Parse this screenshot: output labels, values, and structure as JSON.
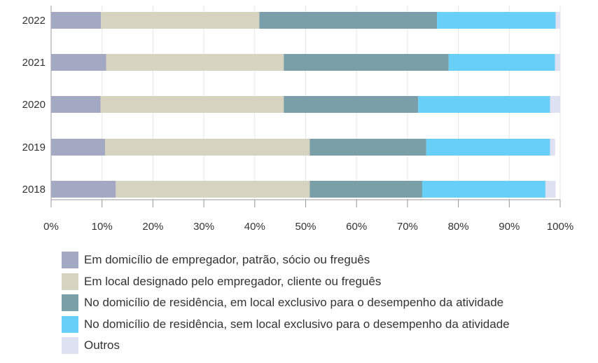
{
  "chart_data": {
    "type": "bar",
    "orientation": "horizontal",
    "stacked": true,
    "categories": [
      "2022",
      "2021",
      "2020",
      "2019",
      "2018"
    ],
    "series": [
      {
        "name": "Em domicílio de empregador, patrão, sócio ou freguês",
        "color": "#a3a9c3",
        "values": [
          9.8,
          10.8,
          9.7,
          10.6,
          12.7
        ]
      },
      {
        "name": "Em local designado pelo empregador, cliente ou freguês",
        "color": "#d6d3c1",
        "values": [
          31.1,
          34.9,
          36.0,
          40.2,
          38.1
        ]
      },
      {
        "name": "No domicílio de residência, em local exclusivo para o desempenho da atividade",
        "color": "#7b9fa8",
        "values": [
          34.9,
          32.4,
          26.4,
          22.9,
          22.1
        ]
      },
      {
        "name": "No domicílio de residência, sem local exclusivo para o desempenho da atividade",
        "color": "#68cff9",
        "values": [
          23.3,
          20.9,
          25.9,
          24.3,
          24.2
        ]
      },
      {
        "name": "Outros",
        "color": "#dde1f2",
        "values": [
          0.9,
          1.0,
          2.0,
          1.0,
          2.0
        ]
      }
    ],
    "xticks": [
      "0%",
      "10%",
      "20%",
      "30%",
      "40%",
      "50%",
      "60%",
      "70%",
      "80%",
      "90%",
      "100%"
    ],
    "xlim": [
      0,
      100
    ],
    "grid": "vertical",
    "legend_position": "bottom"
  }
}
